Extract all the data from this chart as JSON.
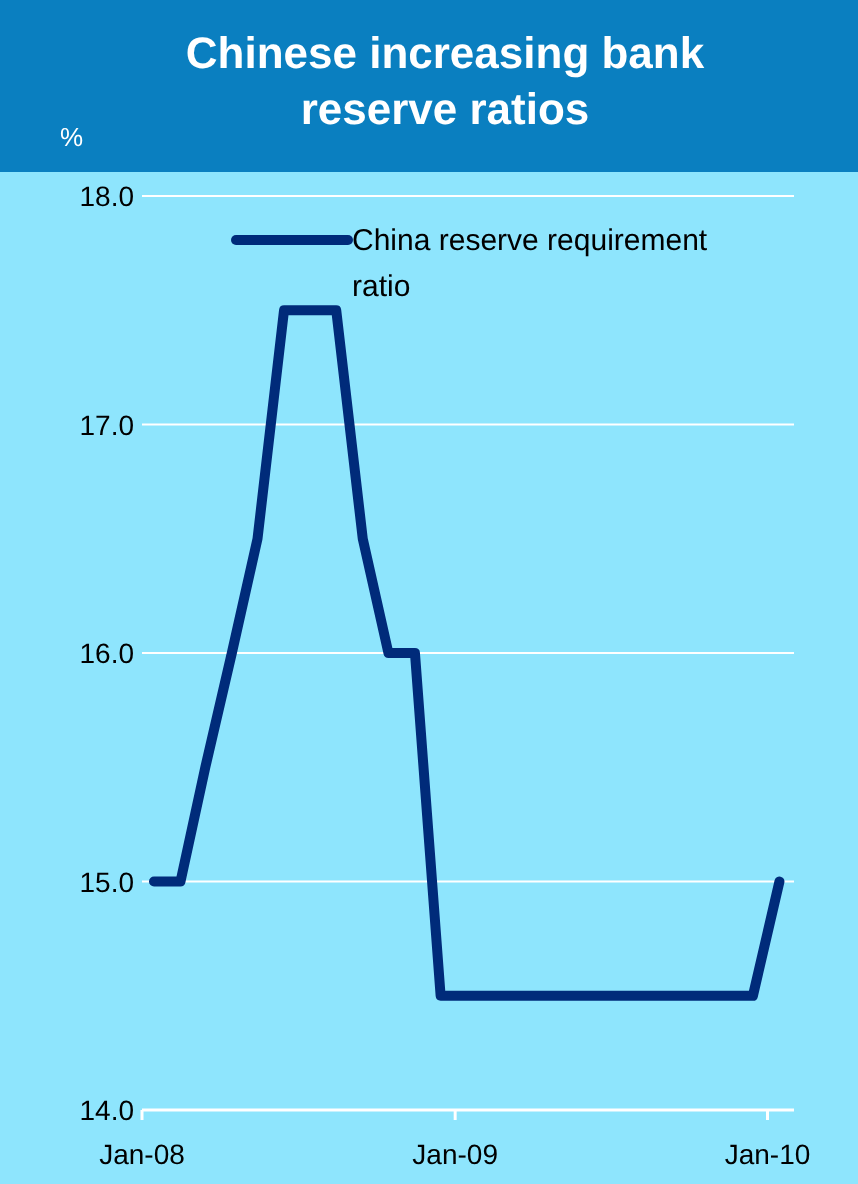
{
  "chart_data": {
    "type": "line",
    "title": "Chinese increasing bank reserve ratios",
    "ylabel": "%",
    "x": [
      "2008-01-15",
      "2008-02-15",
      "2008-03-15",
      "2008-04-15",
      "2008-05-15",
      "2008-06-15",
      "2008-07-15",
      "2008-08-15",
      "2008-09-15",
      "2008-10-15",
      "2008-11-15",
      "2008-12-15",
      "2009-01-15",
      "2009-02-15",
      "2009-03-15",
      "2009-04-15",
      "2009-05-15",
      "2009-06-15",
      "2009-07-15",
      "2009-08-15",
      "2009-09-15",
      "2009-10-15",
      "2009-11-15",
      "2009-12-15",
      "2010-01-15"
    ],
    "series": [
      {
        "name": "China reserve requirement ratio",
        "color": "#002b7a",
        "values": [
          15.0,
          15.0,
          15.5,
          16.0,
          16.5,
          17.5,
          17.5,
          17.5,
          16.5,
          16.0,
          16.0,
          14.5,
          14.5,
          14.5,
          14.5,
          14.5,
          14.5,
          14.5,
          14.5,
          14.5,
          14.5,
          14.5,
          14.5,
          14.5,
          15.0
        ]
      }
    ],
    "xlim": [
      "2008-01-01",
      "2010-02-01"
    ],
    "xticks": [
      {
        "value": "2008-01-01",
        "label": "Jan-08"
      },
      {
        "value": "2009-01-01",
        "label": "Jan-09"
      },
      {
        "value": "2010-01-01",
        "label": "Jan-10"
      }
    ],
    "ylim": [
      14,
      18
    ],
    "yticks": [
      {
        "value": 14,
        "label": "14.0"
      },
      {
        "value": 15,
        "label": "15.0"
      },
      {
        "value": 16,
        "label": "16.0"
      },
      {
        "value": 17,
        "label": "17.0"
      },
      {
        "value": 18,
        "label": "18.0"
      }
    ],
    "grid": "y",
    "legend": "top",
    "marker": "none",
    "line_style": "solid"
  }
}
